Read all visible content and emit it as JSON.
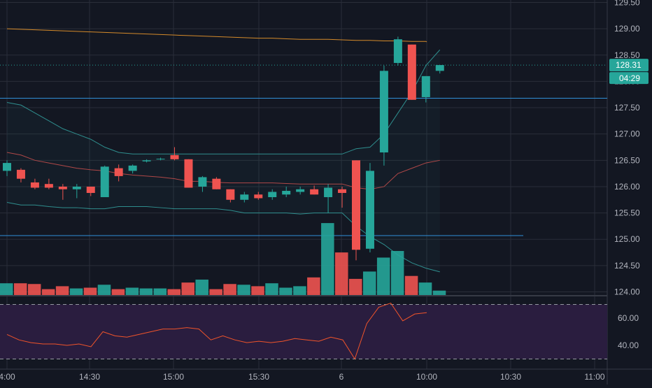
{
  "colors": {
    "background": "#131722",
    "grid": "#2a2e39",
    "up": "#26a69a",
    "down": "#ef5350",
    "axis_text": "#b2b5be",
    "bollinger": "#2f8e8e",
    "bollinger_mid": "#b04848",
    "ma_orange": "#d48a2a",
    "hline": "#2f8fd8",
    "rsi_line": "#f0542a",
    "rsi_band": "#2a1d3f",
    "price_tag": "#26a69a"
  },
  "price_axis": {
    "ticks": [
      "129.50",
      "129.00",
      "128.50",
      "128.00",
      "127.50",
      "127.00",
      "126.50",
      "126.00",
      "125.50",
      "125.00",
      "124.50",
      "124.00"
    ],
    "last_price": "128.31",
    "countdown": "04:29"
  },
  "rsi_axis": {
    "ticks": [
      "60.00",
      "40.00"
    ]
  },
  "time_axis": {
    "labels": [
      "4:00",
      "14:30",
      "15:00",
      "15:30",
      "6",
      "10:00",
      "10:30",
      "11:00"
    ]
  },
  "chart_data": [
    {
      "type": "candlestick",
      "title": "",
      "y_range": [
        124.0,
        129.5
      ],
      "y_scale": "linear",
      "grid": true,
      "interval_minutes": 5,
      "candles": [
        {
          "time": "13:55",
          "o": 126.3,
          "h": 126.5,
          "l": 126.2,
          "c": 126.45
        },
        {
          "time": "14:00",
          "o": 126.32,
          "h": 126.35,
          "l": 126.08,
          "c": 126.15
        },
        {
          "time": "14:05",
          "o": 126.08,
          "h": 126.15,
          "l": 125.95,
          "c": 125.98
        },
        {
          "time": "14:10",
          "o": 126.05,
          "h": 126.15,
          "l": 125.95,
          "c": 125.98
        },
        {
          "time": "14:15",
          "o": 126.0,
          "h": 126.05,
          "l": 125.75,
          "c": 125.95
        },
        {
          "time": "14:20",
          "o": 125.95,
          "h": 126.05,
          "l": 125.78,
          "c": 126.0
        },
        {
          "time": "14:25",
          "o": 126.0,
          "h": 126.0,
          "l": 125.82,
          "c": 125.88
        },
        {
          "time": "14:30",
          "o": 125.8,
          "h": 126.4,
          "l": 125.8,
          "c": 126.38
        },
        {
          "time": "14:35",
          "o": 126.35,
          "h": 126.42,
          "l": 126.1,
          "c": 126.2
        },
        {
          "time": "14:40",
          "o": 126.3,
          "h": 126.42,
          "l": 126.25,
          "c": 126.4
        },
        {
          "time": "14:45",
          "o": 126.48,
          "h": 126.52,
          "l": 126.46,
          "c": 126.5
        },
        {
          "time": "14:50",
          "o": 126.52,
          "h": 126.55,
          "l": 126.5,
          "c": 126.53
        },
        {
          "time": "14:55",
          "o": 126.6,
          "h": 126.75,
          "l": 126.5,
          "c": 126.52
        },
        {
          "time": "15:00",
          "o": 126.52,
          "h": 126.52,
          "l": 125.98,
          "c": 125.98
        },
        {
          "time": "15:05",
          "o": 126.0,
          "h": 126.2,
          "l": 125.9,
          "c": 126.18
        },
        {
          "time": "15:10",
          "o": 126.15,
          "h": 126.18,
          "l": 125.95,
          "c": 125.95
        },
        {
          "time": "15:15",
          "o": 125.95,
          "h": 125.95,
          "l": 125.7,
          "c": 125.75
        },
        {
          "time": "15:20",
          "o": 125.75,
          "h": 125.9,
          "l": 125.7,
          "c": 125.85
        },
        {
          "time": "15:25",
          "o": 125.85,
          "h": 125.9,
          "l": 125.75,
          "c": 125.78
        },
        {
          "time": "15:30",
          "o": 125.8,
          "h": 125.95,
          "l": 125.75,
          "c": 125.9
        },
        {
          "time": "15:35",
          "o": 125.85,
          "h": 126.0,
          "l": 125.8,
          "c": 125.92
        },
        {
          "time": "15:40",
          "o": 125.9,
          "h": 126.0,
          "l": 125.85,
          "c": 125.95
        },
        {
          "time": "15:45",
          "o": 125.95,
          "h": 126.02,
          "l": 125.85,
          "c": 125.85
        },
        {
          "time": "15:50",
          "o": 125.8,
          "h": 126.05,
          "l": 125.5,
          "c": 125.98
        },
        {
          "time": "15:55",
          "o": 125.95,
          "h": 126.0,
          "l": 125.6,
          "c": 125.88
        },
        {
          "time": "09:30",
          "o": 126.5,
          "h": 126.5,
          "l": 124.6,
          "c": 124.8
        },
        {
          "time": "09:35",
          "o": 124.82,
          "h": 126.45,
          "l": 124.75,
          "c": 126.3
        },
        {
          "time": "09:40",
          "o": 126.65,
          "h": 128.3,
          "l": 126.4,
          "c": 128.2
        },
        {
          "time": "09:45",
          "o": 128.35,
          "h": 128.85,
          "l": 128.3,
          "c": 128.8
        },
        {
          "time": "09:50",
          "o": 128.7,
          "h": 128.7,
          "l": 127.65,
          "c": 127.65
        },
        {
          "time": "09:55",
          "o": 127.7,
          "h": 128.1,
          "l": 127.6,
          "c": 128.1
        },
        {
          "time": "10:00",
          "o": 128.2,
          "h": 128.31,
          "l": 128.15,
          "c": 128.31
        }
      ],
      "volume_relative": [
        0.16,
        0.16,
        0.15,
        0.08,
        0.12,
        0.09,
        0.1,
        0.14,
        0.08,
        0.1,
        0.09,
        0.09,
        0.08,
        0.17,
        0.21,
        0.08,
        0.15,
        0.14,
        0.12,
        0.16,
        0.1,
        0.12,
        0.24,
        0.98,
        0.58,
        0.22,
        0.32,
        0.51,
        0.6,
        0.26,
        0.17,
        0.06
      ],
      "bollinger": {
        "upper": [
          127.6,
          127.55,
          127.4,
          127.25,
          127.1,
          127.0,
          126.9,
          126.75,
          126.65,
          126.62,
          126.62,
          126.62,
          126.62,
          126.62,
          126.62,
          126.62,
          126.62,
          126.62,
          126.62,
          126.62,
          126.62,
          126.62,
          126.62,
          126.62,
          126.62,
          126.72,
          126.75,
          127.0,
          127.4,
          127.8,
          128.3,
          128.6
        ],
        "middle": [
          126.65,
          126.6,
          126.5,
          126.45,
          126.4,
          126.35,
          126.32,
          126.3,
          126.25,
          126.22,
          126.2,
          126.18,
          126.15,
          126.1,
          126.1,
          126.08,
          126.07,
          126.07,
          126.07,
          126.07,
          126.06,
          126.05,
          126.05,
          126.05,
          126.05,
          125.98,
          125.95,
          126.0,
          126.25,
          126.35,
          126.45,
          126.5
        ],
        "lower": [
          125.7,
          125.65,
          125.65,
          125.62,
          125.6,
          125.6,
          125.58,
          125.58,
          125.62,
          125.62,
          125.62,
          125.6,
          125.58,
          125.58,
          125.58,
          125.58,
          125.55,
          125.5,
          125.5,
          125.5,
          125.5,
          125.48,
          125.5,
          125.5,
          125.5,
          125.25,
          125.05,
          124.9,
          124.7,
          124.55,
          124.45,
          124.38
        ]
      },
      "ma_orange": [
        129.0,
        128.99,
        128.98,
        128.97,
        128.96,
        128.95,
        128.94,
        128.93,
        128.92,
        128.91,
        128.9,
        128.89,
        128.88,
        128.87,
        128.86,
        128.85,
        128.84,
        128.83,
        128.82,
        128.82,
        128.81,
        128.8,
        128.8,
        128.8,
        128.79,
        128.78,
        128.78,
        128.77,
        128.77,
        128.76,
        128.76,
        128.75
      ],
      "ma_orange_end_x": 610,
      "horizontal_lines": [
        {
          "price": 127.68,
          "x_end": 868
        },
        {
          "price": 125.07,
          "x_end": 748
        }
      ]
    },
    {
      "type": "line",
      "name": "",
      "y_range": [
        30,
        75
      ],
      "bands": [
        30,
        70
      ],
      "values": [
        48,
        44,
        42,
        41,
        41,
        40,
        41,
        39,
        50,
        47,
        46,
        48,
        50,
        52,
        52,
        53,
        52,
        44,
        47,
        44,
        42,
        43,
        42,
        43,
        45,
        44,
        43,
        46,
        44,
        30,
        56,
        68,
        71,
        58,
        63,
        64
      ]
    }
  ]
}
